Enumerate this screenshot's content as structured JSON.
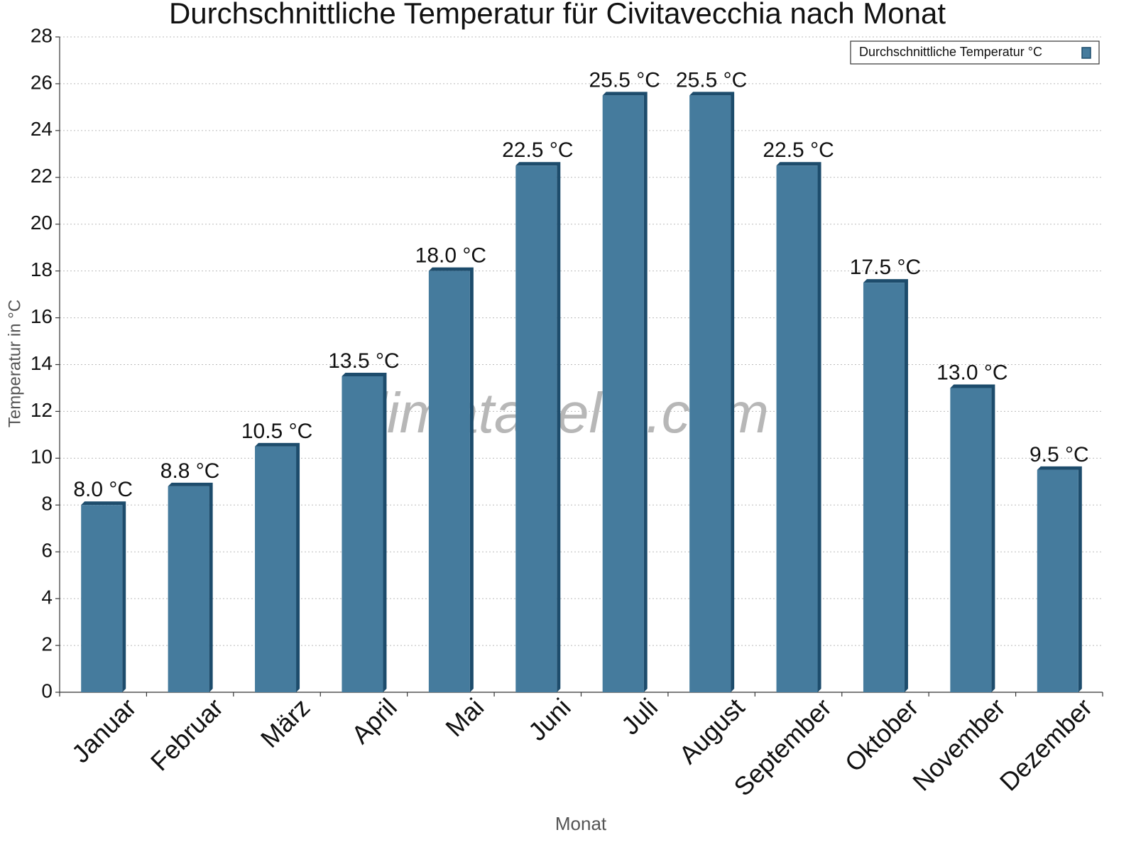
{
  "chart_data": {
    "type": "bar",
    "title": "Durchschnittliche Temperatur für Civitavecchia nach Monat",
    "watermark": "klimatabelle.com",
    "x_label": "Monat",
    "y_label": "Temperatur in °C",
    "categories": [
      "Januar",
      "Februar",
      "März",
      "April",
      "Mai",
      "Juni",
      "Juli",
      "August",
      "September",
      "Oktober",
      "November",
      "Dezember"
    ],
    "series": [
      {
        "name": "Durchschnittliche Temperatur °C",
        "color": "#457b9d",
        "values": [
          8.0,
          8.8,
          10.5,
          13.5,
          18.0,
          22.5,
          25.5,
          25.5,
          22.5,
          17.5,
          13.0,
          9.5
        ],
        "value_labels": [
          "8.0 °C",
          "8.8 °C",
          "10.5 °C",
          "13.5 °C",
          "18.0 °C",
          "22.5 °C",
          "25.5 °C",
          "25.5 °C",
          "22.5 °C",
          "17.5 °C",
          "13.0 °C",
          "9.5 °C"
        ]
      }
    ],
    "ylim": [
      0,
      28
    ],
    "yticks": [
      0,
      2,
      4,
      6,
      8,
      10,
      12,
      14,
      16,
      18,
      20,
      22,
      24,
      26,
      28
    ],
    "grid": true,
    "legend_position": "top-right"
  }
}
